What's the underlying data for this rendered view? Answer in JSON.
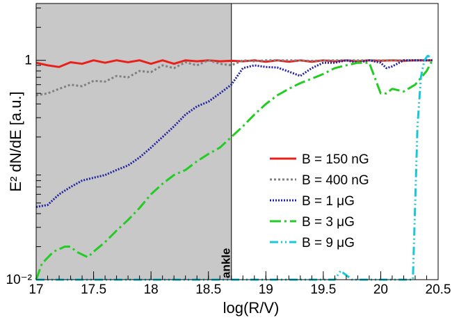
{
  "chart_data": {
    "type": "line",
    "xlabel": "log(R/V)",
    "ylabel": "E² dN/dE  [a.u.]",
    "xlim": [
      17,
      20.5
    ],
    "ylim": [
      0.01,
      3.3
    ],
    "yscale": "log",
    "x_ticks": [
      "17",
      "17.5",
      "18",
      "18.5",
      "19",
      "19.5",
      "20",
      "20.5"
    ],
    "y_ticks": [
      "10⁻²",
      "1"
    ],
    "grid": false,
    "legend_position": "lower-right",
    "shaded_region": {
      "x_range": [
        17,
        18.7
      ],
      "color": "#c8c8c8"
    },
    "annotation": {
      "text": "ankle",
      "x": 18.7
    },
    "series": [
      {
        "name": "B = 150 nG",
        "color": "#e8201a",
        "dash": "solid",
        "x": [
          17.0,
          17.1,
          17.2,
          17.3,
          17.4,
          17.5,
          17.6,
          17.7,
          17.8,
          17.9,
          18.0,
          18.1,
          18.2,
          18.3,
          18.4,
          18.5,
          18.6,
          18.7,
          18.8,
          18.9,
          19.0,
          19.1,
          19.2,
          19.3,
          19.4,
          19.5,
          19.6,
          19.7,
          19.8,
          19.9,
          20.0,
          20.1,
          20.2,
          20.3,
          20.4,
          20.45
        ],
        "values": [
          0.95,
          0.9,
          0.87,
          0.96,
          0.93,
          1.0,
          0.95,
          1.0,
          0.96,
          1.0,
          0.93,
          1.0,
          0.93,
          1.0,
          0.98,
          1.0,
          0.98,
          0.99,
          0.98,
          1.0,
          0.97,
          1.0,
          0.97,
          1.0,
          0.97,
          1.0,
          0.98,
          1.0,
          0.98,
          1.0,
          0.99,
          1.0,
          0.99,
          1.0,
          1.0,
          1.0
        ]
      },
      {
        "name": "B = 400 nG",
        "color": "#808080",
        "dash": "dotted",
        "x": [
          17.0,
          17.1,
          17.2,
          17.3,
          17.4,
          17.5,
          17.6,
          17.7,
          17.8,
          17.9,
          18.0,
          18.1,
          18.2,
          18.3,
          18.4,
          18.5,
          18.6,
          18.7,
          18.8,
          18.9,
          19.0,
          19.2,
          19.4,
          19.6,
          19.8,
          20.0,
          20.2,
          20.4,
          20.45
        ],
        "values": [
          0.48,
          0.5,
          0.55,
          0.6,
          0.58,
          0.65,
          0.64,
          0.72,
          0.7,
          0.8,
          0.78,
          0.9,
          0.85,
          0.96,
          0.9,
          1.0,
          0.93,
          0.9,
          1.0,
          0.98,
          1.0,
          1.0,
          0.99,
          1.0,
          1.0,
          1.0,
          1.0,
          1.0,
          1.0
        ]
      },
      {
        "name": "B = 1 μG",
        "color": "#2020a0",
        "dash": "dotted-dense",
        "x": [
          17.0,
          17.1,
          17.2,
          17.3,
          17.4,
          17.5,
          17.6,
          17.7,
          17.8,
          17.9,
          18.0,
          18.1,
          18.2,
          18.3,
          18.4,
          18.5,
          18.6,
          18.7,
          18.8,
          18.9,
          19.0,
          19.1,
          19.2,
          19.3,
          19.4,
          19.5,
          19.6,
          19.7,
          19.8,
          19.9,
          20.0,
          20.05,
          20.1,
          20.2,
          20.3,
          20.4,
          20.45
        ],
        "values": [
          0.046,
          0.048,
          0.06,
          0.07,
          0.08,
          0.085,
          0.09,
          0.1,
          0.11,
          0.13,
          0.16,
          0.2,
          0.25,
          0.32,
          0.38,
          0.42,
          0.5,
          0.6,
          0.85,
          0.9,
          0.87,
          0.86,
          0.79,
          0.72,
          0.85,
          0.95,
          0.95,
          1.0,
          0.95,
          1.0,
          0.95,
          0.85,
          0.88,
          1.0,
          1.0,
          1.0,
          1.0
        ]
      },
      {
        "name": "B = 3 μG",
        "color": "#22cc22",
        "dash": "dash-dot",
        "x": [
          17.0,
          17.05,
          17.15,
          17.25,
          17.3,
          17.35,
          17.45,
          17.5,
          17.6,
          17.7,
          17.8,
          17.9,
          18.0,
          18.1,
          18.2,
          18.3,
          18.4,
          18.5,
          18.6,
          18.7,
          18.8,
          18.9,
          19.0,
          19.1,
          19.2,
          19.3,
          19.4,
          19.5,
          19.6,
          19.7,
          19.8,
          19.9,
          20.0,
          20.05,
          20.1,
          20.2,
          20.3,
          20.4,
          20.45
        ],
        "values": [
          0.01,
          0.014,
          0.018,
          0.02,
          0.02,
          0.018,
          0.016,
          0.018,
          0.022,
          0.028,
          0.035,
          0.045,
          0.06,
          0.075,
          0.09,
          0.1,
          0.12,
          0.14,
          0.16,
          0.2,
          0.25,
          0.32,
          0.4,
          0.48,
          0.55,
          0.62,
          0.68,
          0.75,
          0.85,
          0.9,
          0.95,
          0.95,
          0.5,
          0.5,
          0.55,
          0.52,
          0.6,
          0.8,
          1.0
        ]
      },
      {
        "name": "B = 9 μG",
        "color": "#18c8d8",
        "dash": "dash-dot-dot",
        "x": [
          17.0,
          17.5,
          18.0,
          18.5,
          19.0,
          19.5,
          19.6,
          19.65,
          19.7,
          19.75,
          19.8,
          19.9,
          20.0,
          20.1,
          20.2,
          20.28,
          20.3,
          20.32,
          20.35,
          20.38,
          20.41,
          20.45
        ],
        "values": [
          0.01,
          0.01,
          0.01,
          0.01,
          0.01,
          0.01,
          0.01,
          0.012,
          0.011,
          0.01,
          0.01,
          0.01,
          0.01,
          0.01,
          0.01,
          0.01,
          0.05,
          0.25,
          0.7,
          1.0,
          1.1,
          1.05
        ]
      }
    ]
  }
}
